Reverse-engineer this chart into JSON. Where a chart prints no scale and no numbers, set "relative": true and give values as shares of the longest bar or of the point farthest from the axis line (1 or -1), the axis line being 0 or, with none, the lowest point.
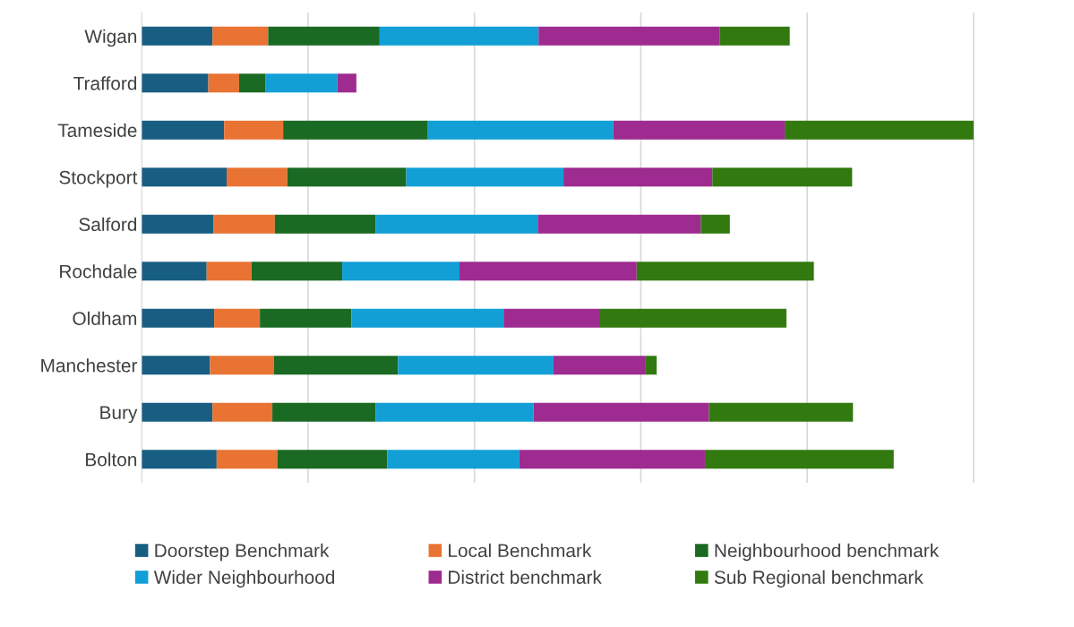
{
  "chart_data": {
    "type": "bar",
    "orientation": "horizontal",
    "stacked": true,
    "relative": true,
    "grid": "x",
    "legend": "bottom",
    "tick_labels": "y",
    "categories": [
      "Wigan",
      "Trafford",
      "Tameside",
      "Stockport",
      "Salford",
      "Rochdale",
      "Oldham",
      "Manchester",
      "Bury",
      "Bolton"
    ],
    "series": [
      {
        "name": "Doorstep Benchmark",
        "color": "#175e82",
        "values": [
          0.085,
          0.08,
          0.099,
          0.102,
          0.086,
          0.078,
          0.087,
          0.082,
          0.085,
          0.09
        ]
      },
      {
        "name": "Local Benchmark",
        "color": "#e97333",
        "values": [
          0.067,
          0.037,
          0.071,
          0.073,
          0.074,
          0.054,
          0.055,
          0.077,
          0.072,
          0.073
        ]
      },
      {
        "name": "Neighbourhood benchmark",
        "color": "#1b6a23",
        "values": [
          0.134,
          0.032,
          0.174,
          0.143,
          0.121,
          0.109,
          0.11,
          0.149,
          0.124,
          0.132
        ]
      },
      {
        "name": "Wider Neighbourhood",
        "color": "#119fd6",
        "values": [
          0.191,
          0.086,
          0.223,
          0.189,
          0.195,
          0.141,
          0.183,
          0.187,
          0.19,
          0.159
        ]
      },
      {
        "name": "District benchmark",
        "color": "#9e2b8f",
        "values": [
          0.218,
          0.023,
          0.206,
          0.179,
          0.196,
          0.213,
          0.115,
          0.11,
          0.211,
          0.223
        ]
      },
      {
        "name": "Sub Regional benchmark",
        "color": "#327a10",
        "values": [
          0.084,
          0,
          0.227,
          0.168,
          0.035,
          0.213,
          0.225,
          0.014,
          0.173,
          0.227
        ]
      }
    ]
  }
}
